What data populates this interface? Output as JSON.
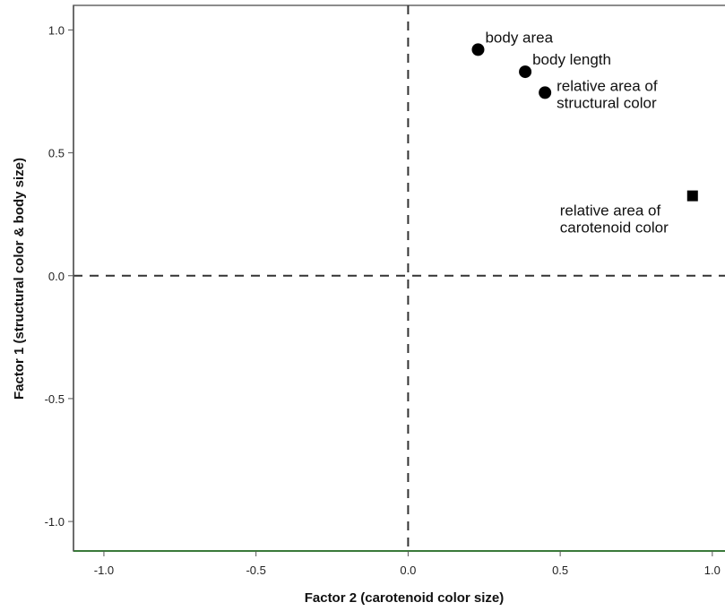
{
  "chart_data": {
    "type": "scatter",
    "title": "",
    "xlabel": "Factor 2 (carotenoid color size)",
    "ylabel": "Factor 1 (structural color & body size)",
    "xlim": [
      -1.1,
      1.08
    ],
    "ylim": [
      -1.12,
      1.1
    ],
    "xticks": [
      -1.0,
      -0.5,
      0.0,
      0.5,
      1.0
    ],
    "xtick_labels": [
      "-1.0",
      "-0.5",
      "0.0",
      "0.5",
      "1.0"
    ],
    "yticks": [
      1.0,
      0.5,
      0.0,
      -0.5,
      -1.0
    ],
    "ytick_labels": [
      "1.0",
      "0.5",
      "0.0",
      "-0.5",
      "-1.0"
    ],
    "reference_lines": {
      "x": 0.0,
      "y": 0.0,
      "style": "dashed"
    },
    "grid": false,
    "points": [
      {
        "label": [
          "body area"
        ],
        "x": 0.23,
        "y": 0.92,
        "marker": "circle",
        "label_position": "upper-right"
      },
      {
        "label": [
          "body length"
        ],
        "x": 0.385,
        "y": 0.83,
        "marker": "circle",
        "label_position": "upper-right"
      },
      {
        "label": [
          "relative area of",
          "structural color"
        ],
        "x": 0.45,
        "y": 0.745,
        "marker": "circle",
        "label_position": "right"
      },
      {
        "label": [
          "relative area of",
          "carotenoid color"
        ],
        "x": 0.935,
        "y": 0.325,
        "marker": "square",
        "label_position": "below-left"
      }
    ],
    "colors": {
      "marker": "#000000",
      "axis": "#555555",
      "bottom_axis": "#3a7a3a",
      "reference": "#333333"
    }
  }
}
